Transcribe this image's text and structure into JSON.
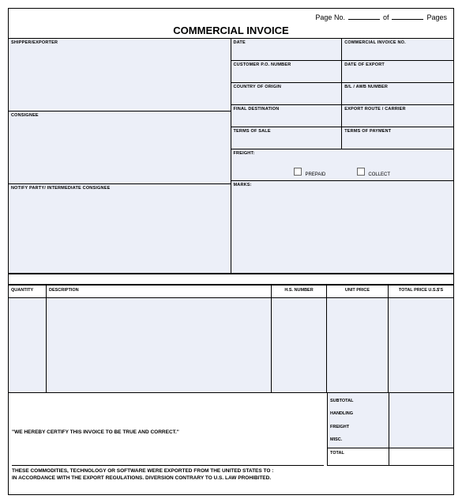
{
  "page_header": {
    "page_no_label": "Page No.",
    "of_label": "of",
    "pages_label": "Pages"
  },
  "title": "COMMERCIAL INVOICE",
  "upper_left": {
    "shipper": "SHIPPER/EXPORTER",
    "consignee": "CONSIGNEE",
    "notify": "NOTIFY PARTY/ INTERMEDIATE CONSIGNEE"
  },
  "upper_right": {
    "date": "DATE",
    "invoice_no": "COMMERCIAL INVOICE NO.",
    "customer_po": "CUSTOMER P.O. NUMBER",
    "date_export": "DATE OF EXPORT",
    "country_origin": "COUNTRY OF ORIGIN",
    "bl_awb": "B/L / AWB NUMBER",
    "final_dest": "FINAL DESTINATION",
    "export_route": "EXPORT ROUTE / CARRIER",
    "terms_sale": "TERMS OF SALE",
    "terms_payment": "TERMS OF PAYMENT",
    "freight": "FREIGHT:",
    "prepaid": "PREPAID",
    "collect": "COLLECT",
    "marks": "MARKS:"
  },
  "items": {
    "qty": "QUANTITY",
    "desc": "DESCRIPTION",
    "hs": "H.S. NUMBER",
    "unit": "UNIT PRICE",
    "total": "TOTAL PRICE U.S.$'S"
  },
  "summary": {
    "subtotal": "SUBTOTAL",
    "handling": "HANDLING",
    "freight": "FREIGHT",
    "misc": "MISC.",
    "total": "TOTAL"
  },
  "certify": "\"WE HEREBY CERTIFY THIS INVOICE TO BE TRUE AND CORRECT.\"",
  "export_note_1": "THESE COMMODITIES, TECHNOLOGY OR SOFTWARE WERE EXPORTED FROM THE UNITED STATES TO :",
  "export_note_2": "IN ACCORDANCE WITH THE EXPORT REGULATIONS.  DIVERSION CONTRARY TO U.S. LAW PROHIBITED.",
  "colors": {
    "fill": "#eceff8",
    "border": "#000000",
    "background": "#ffffff"
  }
}
